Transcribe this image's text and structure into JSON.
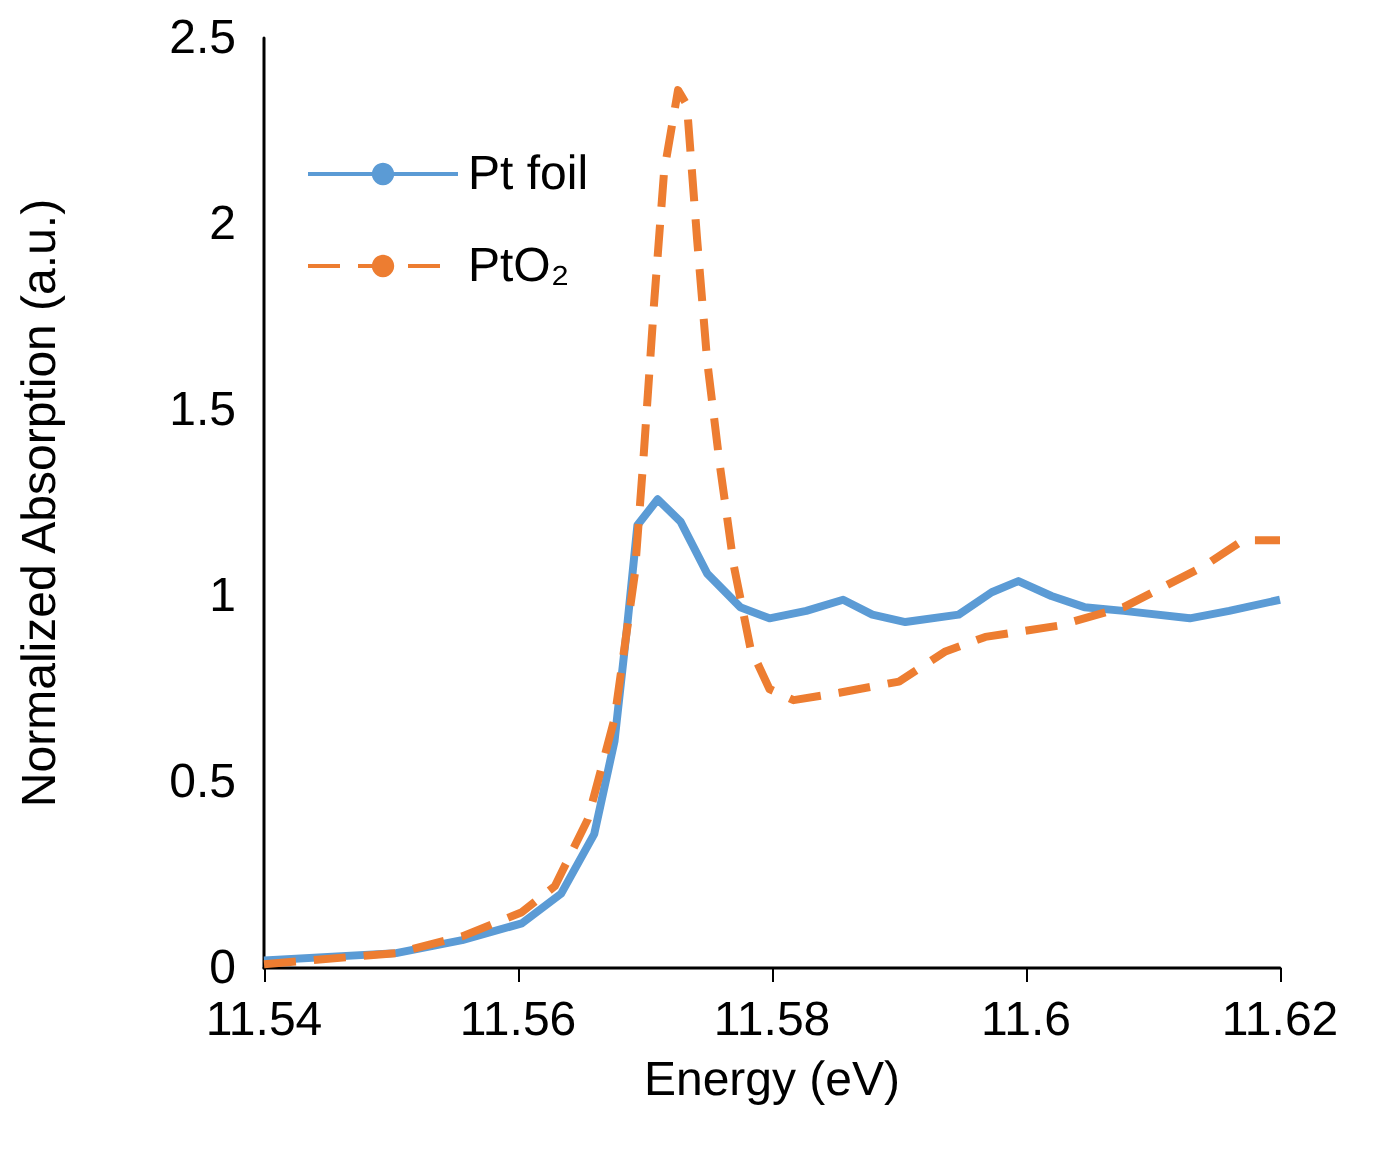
{
  "chart_data": {
    "type": "line",
    "xlabel": "Energy (eV)",
    "ylabel": "Normalized Absorption (a.u.)",
    "xlim": [
      11.54,
      11.62
    ],
    "xticks": [
      11.54,
      11.56,
      11.58,
      11.6,
      11.62
    ],
    "ylim": [
      0,
      2.5
    ],
    "yticks": [
      0,
      0.5,
      1,
      1.5,
      2,
      2.5
    ],
    "grid": false,
    "legend": "top left",
    "marker": "none",
    "series": [
      {
        "name": "Pt foil",
        "color": "#5b9bd5",
        "line_style": "solid",
        "x": [
          11.54,
          11.5504,
          11.5556,
          11.5603,
          11.5634,
          11.566,
          11.5676,
          11.5686,
          11.5694,
          11.571,
          11.5728,
          11.5749,
          11.5775,
          11.5798,
          11.5827,
          11.5856,
          11.5879,
          11.5905,
          11.5947,
          11.5973,
          11.5994,
          11.602,
          11.6046,
          11.6077,
          11.6129,
          11.616,
          11.62
        ],
        "values": [
          0.02,
          0.04,
          0.075,
          0.12,
          0.2,
          0.36,
          0.61,
          0.92,
          1.19,
          1.26,
          1.2,
          1.06,
          0.97,
          0.94,
          0.96,
          0.99,
          0.95,
          0.93,
          0.95,
          1.01,
          1.04,
          1,
          0.97,
          0.96,
          0.94,
          0.96,
          0.99
        ]
      },
      {
        "name": "PtO₂",
        "color": "#ed7d31",
        "line_style": "dashed",
        "x": [
          11.54,
          11.5504,
          11.5556,
          11.5603,
          11.5629,
          11.5655,
          11.5676,
          11.5692,
          11.5699,
          11.5707,
          11.5715,
          11.5726,
          11.5733,
          11.5741,
          11.5749,
          11.5759,
          11.577,
          11.5783,
          11.5798,
          11.5817,
          11.5853,
          11.59,
          11.5936,
          11.5968,
          11.6025,
          11.6077,
          11.614,
          11.6171,
          11.62
        ],
        "values": [
          0.01,
          0.04,
          0.085,
          0.15,
          0.22,
          0.4,
          0.67,
          1.06,
          1.38,
          1.78,
          2.14,
          2.36,
          2.32,
          1.96,
          1.63,
          1.35,
          1.08,
          0.86,
          0.75,
          0.72,
          0.74,
          0.77,
          0.85,
          0.89,
          0.92,
          0.97,
          1.08,
          1.15,
          1.15
        ]
      }
    ]
  }
}
